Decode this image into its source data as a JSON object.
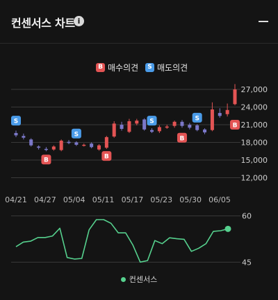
{
  "header": {
    "title": "컨센서스 차트",
    "info_icon": "info-icon",
    "minimize_icon": "minimize-icon"
  },
  "legend": {
    "buy_badge": "B",
    "buy_label": "매수의견",
    "sell_badge": "S",
    "sell_label": "매도의견"
  },
  "colors": {
    "up": "#e35454",
    "down": "#7b78c9",
    "sell": "#4a9be8",
    "consensus": "#56d18e",
    "grid": "#3a3a3a"
  },
  "chart_data": [
    {
      "type": "candlestick",
      "x_tick_labels": [
        "04/21",
        "04/27",
        "05/04",
        "05/11",
        "05/17",
        "05/23",
        "05/30",
        "06/05"
      ],
      "y_tick_labels": [
        "27,000",
        "24,000",
        "21,000",
        "18,000",
        "15,000",
        "12,000"
      ],
      "ylim": [
        10300,
        28300
      ],
      "candles": [
        {
          "o": 19600,
          "c": 19200,
          "h": 20000,
          "l": 18900
        },
        {
          "o": 19100,
          "c": 18800,
          "h": 19500,
          "l": 18500
        },
        {
          "o": 18500,
          "c": 17500,
          "h": 18700,
          "l": 17300
        },
        {
          "o": 17300,
          "c": 17100,
          "h": 17500,
          "l": 16800
        },
        {
          "o": 16900,
          "c": 16800,
          "h": 17200,
          "l": 16500
        },
        {
          "o": 16800,
          "c": 17300,
          "h": 17500,
          "l": 16600
        },
        {
          "o": 16700,
          "c": 18300,
          "h": 18500,
          "l": 16500
        },
        {
          "o": 18100,
          "c": 17900,
          "h": 18400,
          "l": 17700
        },
        {
          "o": 18000,
          "c": 17600,
          "h": 18200,
          "l": 17400
        },
        {
          "o": 17500,
          "c": 17600,
          "h": 17800,
          "l": 17300
        },
        {
          "o": 17800,
          "c": 17200,
          "h": 18000,
          "l": 17000
        },
        {
          "o": 16800,
          "c": 17500,
          "h": 17700,
          "l": 16600
        },
        {
          "o": 17100,
          "c": 18900,
          "h": 19100,
          "l": 16900
        },
        {
          "o": 19000,
          "c": 21200,
          "h": 21600,
          "l": 18800
        },
        {
          "o": 21000,
          "c": 20300,
          "h": 21500,
          "l": 20000
        },
        {
          "o": 19800,
          "c": 21600,
          "h": 22000,
          "l": 19600
        },
        {
          "o": 21200,
          "c": 21700,
          "h": 22000,
          "l": 20900
        },
        {
          "o": 21900,
          "c": 20200,
          "h": 22100,
          "l": 20000
        },
        {
          "o": 20100,
          "c": 19800,
          "h": 20400,
          "l": 19600
        },
        {
          "o": 19900,
          "c": 20600,
          "h": 20900,
          "l": 19600
        },
        {
          "o": 20500,
          "c": 20700,
          "h": 21000,
          "l": 20300
        },
        {
          "o": 20800,
          "c": 21500,
          "h": 21700,
          "l": 20500
        },
        {
          "o": 21500,
          "c": 20800,
          "h": 21800,
          "l": 20500
        },
        {
          "o": 21000,
          "c": 20500,
          "h": 21300,
          "l": 20200
        },
        {
          "o": 20900,
          "c": 20100,
          "h": 21100,
          "l": 19900
        },
        {
          "o": 20200,
          "c": 19700,
          "h": 20400,
          "l": 19400
        },
        {
          "o": 20100,
          "c": 23600,
          "h": 24800,
          "l": 19900
        },
        {
          "o": 23000,
          "c": 22500,
          "h": 23800,
          "l": 22200
        },
        {
          "o": 22800,
          "c": 23500,
          "h": 24600,
          "l": 22400
        },
        {
          "o": 24500,
          "c": 27000,
          "h": 27900,
          "l": 24300
        }
      ],
      "signals": [
        {
          "type": "sell",
          "label": "S",
          "index": 0,
          "price": 21700
        },
        {
          "type": "buy",
          "label": "B",
          "index": 4,
          "price": 15100
        },
        {
          "type": "sell",
          "label": "S",
          "index": 8,
          "price": 19500
        },
        {
          "type": "buy",
          "label": "B",
          "index": 12,
          "price": 15700
        },
        {
          "type": "sell",
          "label": "S",
          "index": 18,
          "price": 21700
        },
        {
          "type": "buy",
          "label": "B",
          "index": 22,
          "price": 18800
        },
        {
          "type": "sell",
          "label": "S",
          "index": 24,
          "price": 22200
        },
        {
          "type": "buy",
          "label": "B",
          "index": 29,
          "price": 21000
        }
      ]
    },
    {
      "type": "line",
      "series": [
        {
          "name": "컨센서스",
          "values": [
            50,
            51.5,
            51.8,
            53,
            53,
            53.5,
            56,
            46.5,
            46,
            46.2,
            55.5,
            58.8,
            58.8,
            57.6,
            54.5,
            54.5,
            50.5,
            45,
            45.5,
            52,
            51,
            52.9,
            52.6,
            52.4,
            48.5,
            49.5,
            51,
            55,
            55.2,
            55.8
          ]
        }
      ],
      "y_tick_labels": [
        "60",
        "45"
      ],
      "ylim": [
        43.5,
        61.5
      ]
    }
  ]
}
